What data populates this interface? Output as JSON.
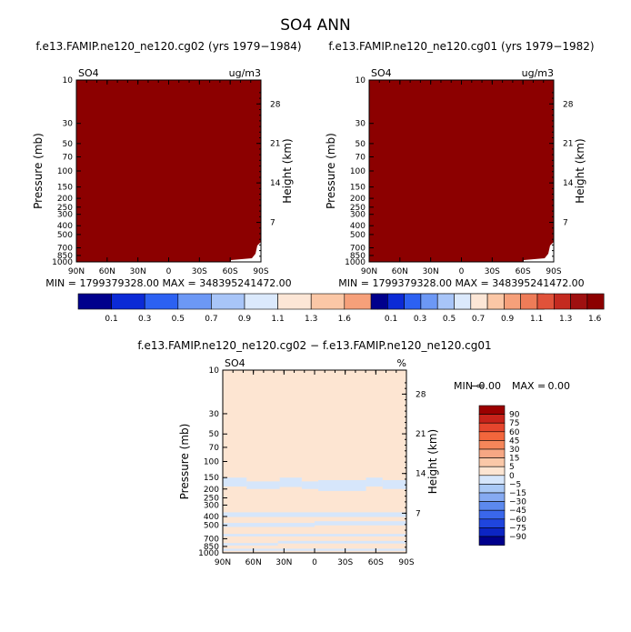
{
  "title": "SO4 ANN",
  "chart_data": [
    {
      "type": "heatmap",
      "case": "f.e13.FAMIP.ne120_ne120.cg02 (yrs 1979−1984)",
      "variable": "SO4",
      "units": "ug/m3",
      "ylabel": "Pressure (mb)",
      "y2label": "Height (km)",
      "x_ticks": [
        "90N",
        "60N",
        "30N",
        "0",
        "30S",
        "60S",
        "90S"
      ],
      "y_ticks": [
        "10",
        "30",
        "50",
        "70",
        "100",
        "150",
        "200",
        "250",
        "300",
        "400",
        "500",
        "700",
        "850",
        "1000"
      ],
      "y2_ticks": [
        "28",
        "21",
        "14",
        "7"
      ],
      "min_max": "MIN = 1799379328.00   MAX = 348395241472.00",
      "fill_level": 1.6
    },
    {
      "type": "heatmap",
      "case": "f.e13.FAMIP.ne120_ne120.cg01 (yrs 1979−1982)",
      "variable": "SO4",
      "units": "ug/m3",
      "ylabel": "Pressure (mb)",
      "y2label": "Height (km)",
      "x_ticks": [
        "90N",
        "60N",
        "30N",
        "0",
        "30S",
        "60S",
        "90S"
      ],
      "y_ticks": [
        "10",
        "30",
        "50",
        "70",
        "100",
        "150",
        "200",
        "250",
        "300",
        "400",
        "500",
        "700",
        "850",
        "1000"
      ],
      "y2_ticks": [
        "28",
        "21",
        "14",
        "7"
      ],
      "min_max": "MIN = 1799379328.00   MAX = 348395241472.00",
      "fill_level": 1.6
    },
    {
      "type": "heatmap",
      "case": "f.e13.FAMIP.ne120_ne120.cg02 − f.e13.FAMIP.ne120_ne120.cg01",
      "variable": "SO4",
      "units": "%",
      "ylabel": "Pressure (mb)",
      "y2label": "Height (km)",
      "x_ticks": [
        "90N",
        "60N",
        "30N",
        "0",
        "30S",
        "60S",
        "90S"
      ],
      "y_ticks": [
        "10",
        "30",
        "50",
        "70",
        "100",
        "150",
        "200",
        "250",
        "300",
        "400",
        "500",
        "700",
        "850",
        "1000"
      ],
      "y2_ticks": [
        "28",
        "21",
        "14",
        "7"
      ],
      "min_label": "MIN =",
      "min_value": "−0.00",
      "max_label": "MAX =",
      "max_value": "0.00",
      "background_level": "0 to 5",
      "band_level": "−5 to 0",
      "band_region": "pressure levels below about 150 mb"
    }
  ],
  "legend_top": {
    "labels": [
      "0.1",
      "0.3",
      "0.5",
      "0.7",
      "0.9",
      "1.1",
      "1.3",
      "1.6"
    ],
    "colors": [
      "#00008c",
      "#0b2ad6",
      "#2c61f2",
      "#6c98f5",
      "#a8c5f8",
      "#dbe9fc",
      "#fce6d6",
      "#fbc7a6",
      "#f6a07a",
      "#ee7c58",
      "#e0523a",
      "#c42a20",
      "#9f1010",
      "#8c0000"
    ]
  },
  "legend_diff": {
    "labels": [
      "90",
      "75",
      "60",
      "45",
      "30",
      "15",
      "5",
      "0",
      "−5",
      "−15",
      "−30",
      "−45",
      "−60",
      "−75",
      "−90"
    ],
    "colors": [
      "#9b0000",
      "#c8231a",
      "#e6462d",
      "#f3663c",
      "#f5865a",
      "#f6a784",
      "#fac8a8",
      "#fde5d2",
      "#d6e6fb",
      "#aac9f6",
      "#86aaf2",
      "#5c89ee",
      "#3a67eb",
      "#1f45de",
      "#0c25c4",
      "#00008c"
    ]
  },
  "colors": {
    "max_red": "#8c0000",
    "diff_background": "#fde5d2",
    "diff_band": "#d6e6fb"
  }
}
